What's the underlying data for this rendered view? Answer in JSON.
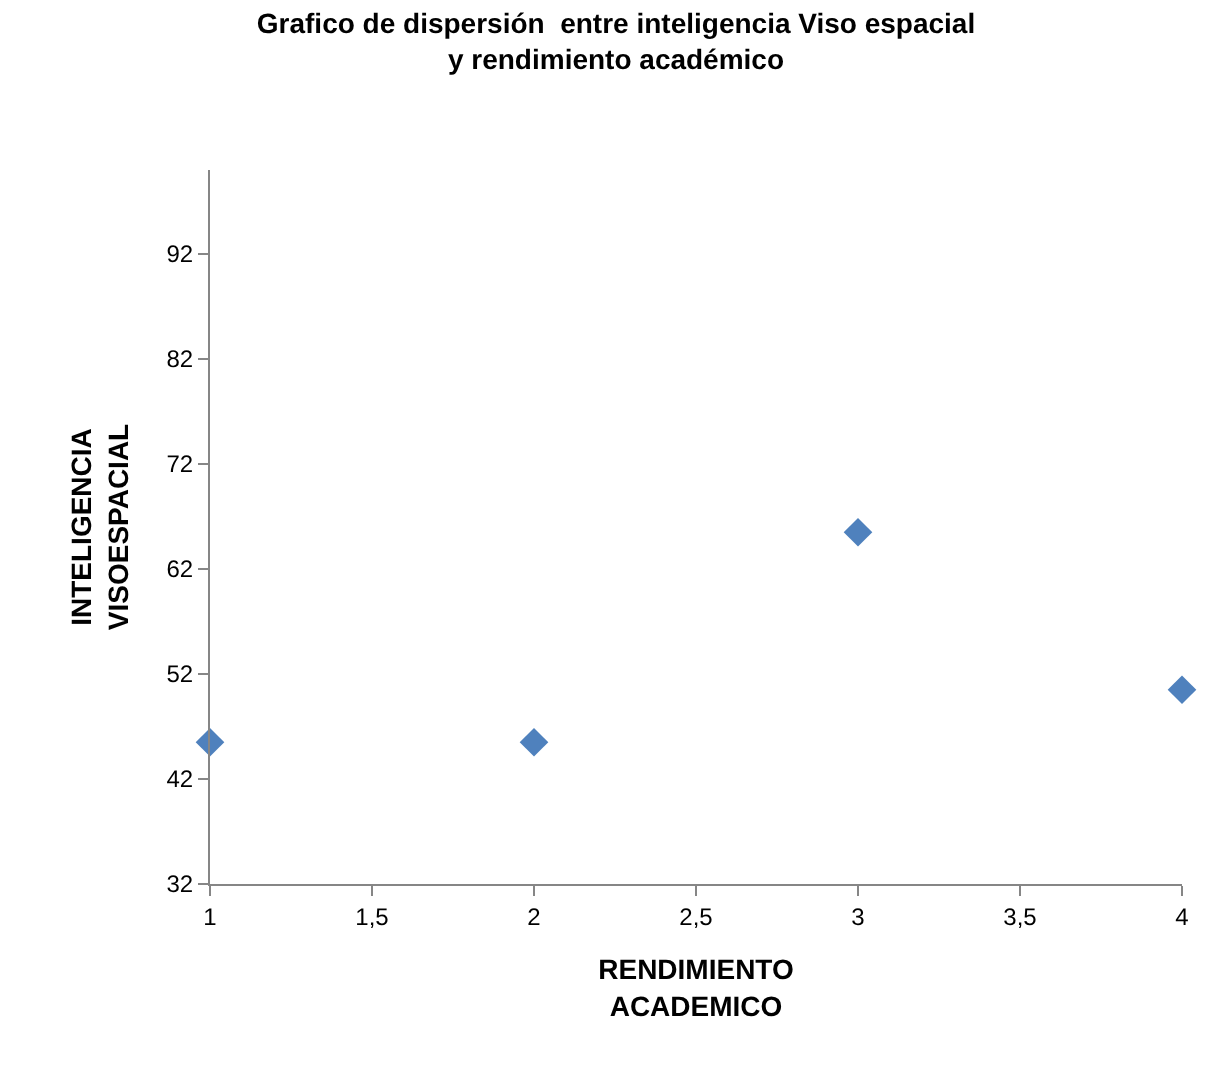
{
  "chart_data": {
    "type": "scatter",
    "title": "Grafico de dispersión  entre inteligencia Viso espacial\ny rendimiento académico",
    "xlabel": "RENDIMIENTO\nACADEMICO",
    "ylabel": "INTELIGENCIA\nVISOESPACIAL",
    "x": [
      1,
      2,
      3,
      4
    ],
    "values": [
      45.5,
      45.5,
      65.5,
      50.5
    ],
    "color": "#4f81bd",
    "marker": "diamond",
    "xlim": [
      1,
      4
    ],
    "xticks": [
      1,
      {
        "value": 1.5,
        "label": "1,5"
      },
      2,
      {
        "value": 2.5,
        "label": "2,5"
      },
      3,
      {
        "value": 3.5,
        "label": "3,5"
      },
      4
    ],
    "ylim": [
      32,
      100
    ],
    "yticks": [
      32,
      42,
      52,
      62,
      72,
      82,
      92
    ]
  }
}
